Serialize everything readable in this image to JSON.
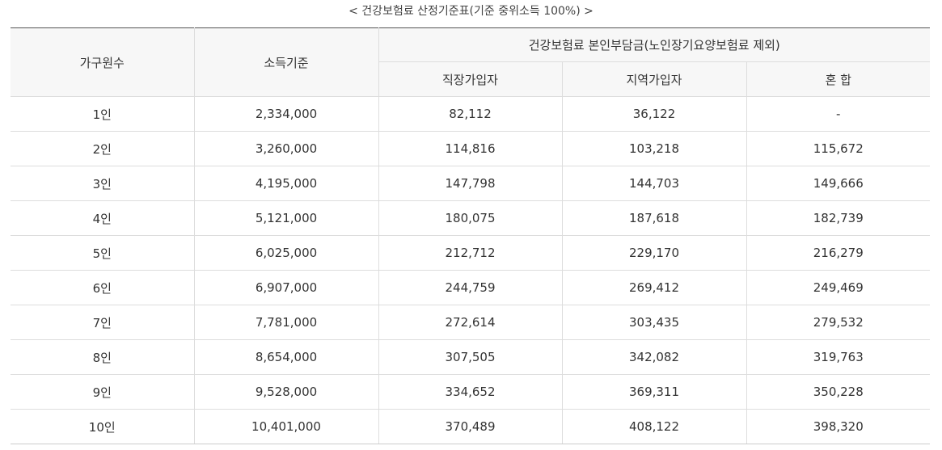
{
  "caption": "< 건강보험료 산정기준표(기준 중위소득 100%) >",
  "headers": {
    "household": "가구원수",
    "income": "소득기준",
    "premium_group": "건강보험료 본인부담금(노인장기요양보험료 제외)",
    "employee": "직장가입자",
    "regional": "지역가입자",
    "mixed": "혼 합"
  },
  "rows": [
    [
      "1인",
      "2,334,000",
      "82,112",
      "36,122",
      "-"
    ],
    [
      "2인",
      "3,260,000",
      "114,816",
      "103,218",
      "115,672"
    ],
    [
      "3인",
      "4,195,000",
      "147,798",
      "144,703",
      "149,666"
    ],
    [
      "4인",
      "5,121,000",
      "180,075",
      "187,618",
      "182,739"
    ],
    [
      "5인",
      "6,025,000",
      "212,712",
      "229,170",
      "216,279"
    ],
    [
      "6인",
      "6,907,000",
      "244,759",
      "269,412",
      "249,469"
    ],
    [
      "7인",
      "7,781,000",
      "272,614",
      "303,435",
      "279,532"
    ],
    [
      "8인",
      "8,654,000",
      "307,505",
      "342,082",
      "319,763"
    ],
    [
      "9인",
      "9,528,000",
      "334,652",
      "369,311",
      "350,228"
    ],
    [
      "10인",
      "10,401,000",
      "370,489",
      "408,122",
      "398,320"
    ]
  ]
}
